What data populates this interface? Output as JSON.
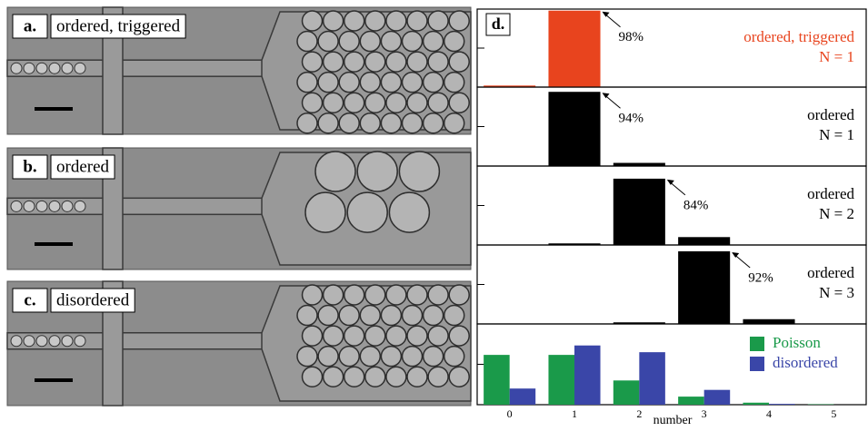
{
  "panels": [
    {
      "letter": "a.",
      "label": "ordered, triggered"
    },
    {
      "letter": "b.",
      "label": "ordered"
    },
    {
      "letter": "c.",
      "label": "disordered"
    }
  ],
  "chart_data": [
    {
      "type": "bar",
      "label": "d.",
      "color": "#e8441e",
      "values": [
        2,
        98,
        null,
        null,
        null,
        null
      ],
      "value_labels": [
        null,
        "98%",
        null,
        null,
        null,
        null
      ],
      "annotations": [
        "ordered, triggered",
        "N = 1"
      ],
      "ylim": [
        0,
        100
      ],
      "yticks": [
        50
      ]
    },
    {
      "type": "bar",
      "color": "#000000",
      "values": [
        null,
        94,
        4,
        null,
        null,
        null
      ],
      "value_labels": [
        null,
        "94%",
        null,
        null,
        null,
        null
      ],
      "annotations": [
        "ordered",
        "N = 1"
      ],
      "ylim": [
        0,
        100
      ],
      "yticks": [
        50
      ]
    },
    {
      "type": "bar",
      "color": "#000000",
      "values": [
        null,
        2,
        84,
        10,
        null,
        null
      ],
      "value_labels": [
        null,
        null,
        "84%",
        null,
        null,
        null
      ],
      "annotations": [
        "ordered",
        "N = 2"
      ],
      "ylim": [
        0,
        100
      ],
      "yticks": [
        50
      ]
    },
    {
      "type": "bar",
      "color": "#000000",
      "values": [
        null,
        null,
        2,
        92,
        6,
        null
      ],
      "value_labels": [
        null,
        null,
        null,
        "92%",
        null,
        null
      ],
      "annotations": [
        "ordered",
        "N = 3"
      ],
      "ylim": [
        0,
        100
      ],
      "yticks": [
        50
      ]
    },
    {
      "type": "bar",
      "categories": [
        "0",
        "1",
        "2",
        "3",
        "4",
        "5"
      ],
      "xlabel": "number",
      "legend": "upper right",
      "ylim": [
        0,
        60
      ],
      "yticks": [
        30
      ],
      "series": [
        {
          "name": "Poisson",
          "color": "#1a9a4a",
          "values": [
            37,
            37,
            18,
            6,
            1.5,
            0.3
          ]
        },
        {
          "name": "disordered",
          "color": "#3a46a8",
          "values": [
            12,
            44,
            39,
            11,
            0.6,
            0
          ]
        }
      ]
    }
  ]
}
